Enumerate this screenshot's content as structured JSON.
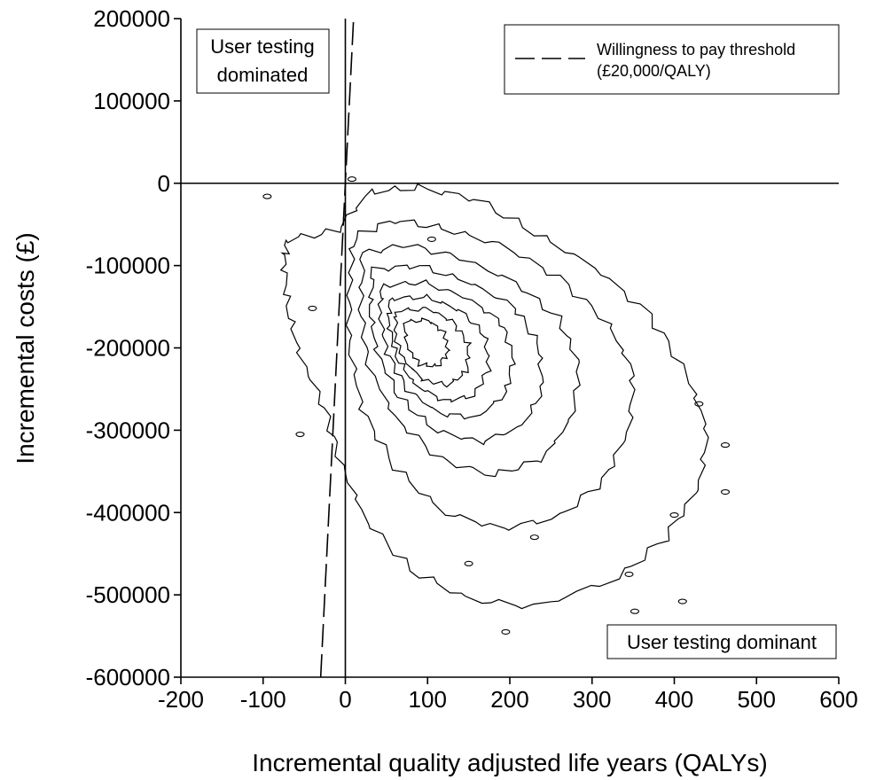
{
  "chart_data": {
    "type": "contour",
    "xlabel": "Incremental quality adjusted life years (QALYs)",
    "ylabel": "Incremental costs (£)",
    "xlim": [
      -200,
      600
    ],
    "ylim": [
      -600000,
      200000
    ],
    "xticks": [
      -200,
      -100,
      0,
      100,
      200,
      300,
      400,
      500,
      600
    ],
    "yticks": [
      200000,
      100000,
      0,
      -100000,
      -200000,
      -300000,
      -400000,
      -500000,
      -600000
    ],
    "xtick_labels": [
      "-200",
      "-100",
      "0",
      "100",
      "200",
      "300",
      "400",
      "500",
      "600"
    ],
    "ytick_labels": [
      "200000",
      "100000",
      "0",
      "-100000",
      "-200000",
      "-300000",
      "-400000",
      "-500000",
      "-600000"
    ],
    "grid": false,
    "legend": {
      "placement": "top-right",
      "line1": "Willingness to pay threshold",
      "line2": "(£20,000/QALY)",
      "line_style": "dashed"
    },
    "threshold": {
      "slope_gbp_per_qaly": 20000
    },
    "annotations": {
      "top_left_line1": "User testing",
      "top_left_line2": "dominated",
      "bottom_right": "User testing dominant"
    },
    "density_center": {
      "x": 95,
      "y": -195000
    },
    "contour_levels": [
      {
        "level": 1,
        "points": [
          [
            -70,
            -68000
          ],
          [
            -10,
            -58000
          ],
          [
            30,
            -10000
          ],
          [
            90,
            -5000
          ],
          [
            160,
            -20000
          ],
          [
            230,
            -60000
          ],
          [
            300,
            -100000
          ],
          [
            370,
            -160000
          ],
          [
            415,
            -230000
          ],
          [
            440,
            -300000
          ],
          [
            430,
            -370000
          ],
          [
            390,
            -430000
          ],
          [
            330,
            -480000
          ],
          [
            230,
            -515000
          ],
          [
            150,
            -505000
          ],
          [
            80,
            -470000
          ],
          [
            25,
            -410000
          ],
          [
            -5,
            -340000
          ],
          [
            -25,
            -275000
          ],
          [
            -55,
            -210000
          ],
          [
            -70,
            -150000
          ],
          [
            -75,
            -95000
          ]
        ]
      },
      {
        "level": 2,
        "points": [
          [
            10,
            -65000
          ],
          [
            60,
            -45000
          ],
          [
            120,
            -55000
          ],
          [
            190,
            -75000
          ],
          [
            260,
            -115000
          ],
          [
            320,
            -170000
          ],
          [
            350,
            -230000
          ],
          [
            345,
            -300000
          ],
          [
            315,
            -360000
          ],
          [
            260,
            -405000
          ],
          [
            190,
            -420000
          ],
          [
            120,
            -400000
          ],
          [
            60,
            -345000
          ],
          [
            20,
            -275000
          ],
          [
            5,
            -195000
          ],
          [
            5,
            -120000
          ]
        ]
      },
      {
        "level": 3,
        "points": [
          [
            22,
            -85000
          ],
          [
            75,
            -75000
          ],
          [
            140,
            -90000
          ],
          [
            205,
            -120000
          ],
          [
            260,
            -165000
          ],
          [
            285,
            -220000
          ],
          [
            275,
            -285000
          ],
          [
            240,
            -335000
          ],
          [
            180,
            -355000
          ],
          [
            115,
            -335000
          ],
          [
            60,
            -285000
          ],
          [
            28,
            -220000
          ],
          [
            18,
            -150000
          ]
        ]
      },
      {
        "level": 4,
        "points": [
          [
            35,
            -105000
          ],
          [
            90,
            -100000
          ],
          [
            150,
            -120000
          ],
          [
            205,
            -150000
          ],
          [
            235,
            -195000
          ],
          [
            240,
            -250000
          ],
          [
            215,
            -295000
          ],
          [
            165,
            -315000
          ],
          [
            110,
            -300000
          ],
          [
            65,
            -260000
          ],
          [
            38,
            -205000
          ],
          [
            30,
            -150000
          ]
        ]
      },
      {
        "level": 5,
        "points": [
          [
            45,
            -125000
          ],
          [
            95,
            -120000
          ],
          [
            150,
            -140000
          ],
          [
            190,
            -170000
          ],
          [
            205,
            -210000
          ],
          [
            195,
            -255000
          ],
          [
            160,
            -285000
          ],
          [
            115,
            -280000
          ],
          [
            75,
            -250000
          ],
          [
            50,
            -205000
          ],
          [
            42,
            -160000
          ]
        ]
      },
      {
        "level": 6,
        "points": [
          [
            55,
            -140000
          ],
          [
            100,
            -138000
          ],
          [
            140,
            -155000
          ],
          [
            170,
            -185000
          ],
          [
            175,
            -225000
          ],
          [
            155,
            -258000
          ],
          [
            120,
            -265000
          ],
          [
            85,
            -245000
          ],
          [
            62,
            -210000
          ],
          [
            52,
            -170000
          ]
        ]
      },
      {
        "level": 7,
        "points": [
          [
            62,
            -155000
          ],
          [
            100,
            -152000
          ],
          [
            130,
            -168000
          ],
          [
            150,
            -195000
          ],
          [
            148,
            -228000
          ],
          [
            125,
            -245000
          ],
          [
            95,
            -240000
          ],
          [
            72,
            -215000
          ],
          [
            60,
            -185000
          ]
        ]
      },
      {
        "level": 8,
        "points": [
          [
            72,
            -168000
          ],
          [
            100,
            -166000
          ],
          [
            120,
            -182000
          ],
          [
            126,
            -205000
          ],
          [
            112,
            -222000
          ],
          [
            90,
            -220000
          ],
          [
            75,
            -200000
          ]
        ]
      }
    ],
    "islands": [
      {
        "x": 8,
        "y": 5000
      },
      {
        "x": -95,
        "y": -16000
      },
      {
        "x": -40,
        "y": -152000
      },
      {
        "x": -55,
        "y": -305000
      },
      {
        "x": 150,
        "y": -462000
      },
      {
        "x": 195,
        "y": -545000
      },
      {
        "x": 345,
        "y": -475000
      },
      {
        "x": 430,
        "y": -268000
      },
      {
        "x": 400,
        "y": -403000
      },
      {
        "x": 462,
        "y": -318000
      },
      {
        "x": 462,
        "y": -375000
      },
      {
        "x": 352,
        "y": -520000
      },
      {
        "x": 410,
        "y": -508000
      },
      {
        "x": 105,
        "y": -68000
      },
      {
        "x": 230,
        "y": -430000
      }
    ]
  }
}
